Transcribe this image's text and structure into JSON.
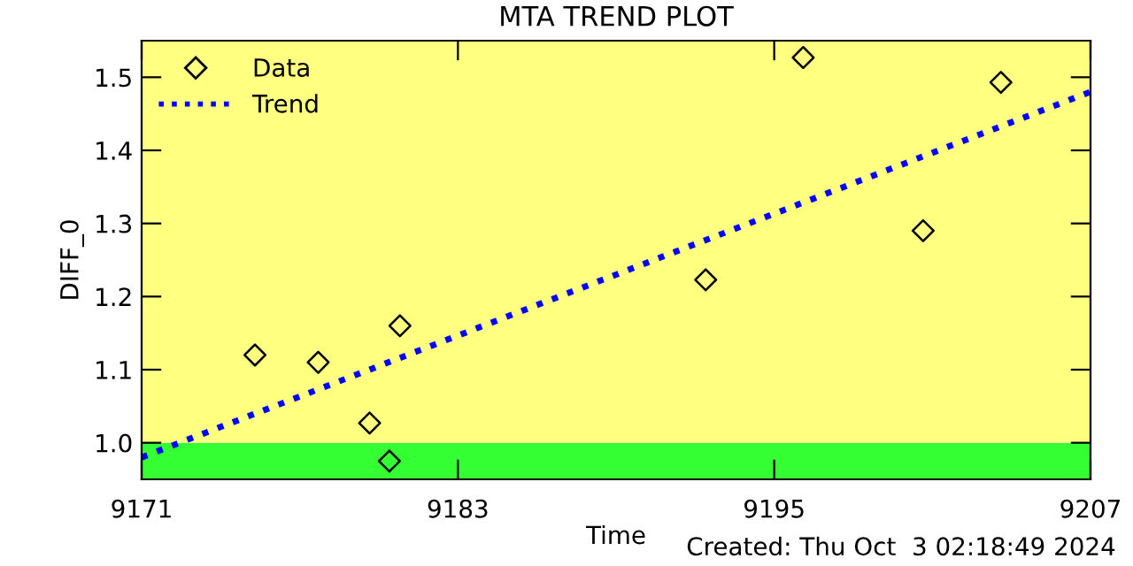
{
  "chart_data": {
    "type": "scatter",
    "title": "MTA TREND PLOT",
    "xlabel": "Time",
    "ylabel": "DIFF_0",
    "series": [
      {
        "name": "Data",
        "color": "#000000",
        "marker": "diamond",
        "x": [
          9175.3,
          9177.7,
          9179.65,
          9180.4,
          9180.8,
          9192.4,
          9196.1,
          9200.65,
          9203.6
        ],
        "values": [
          1.12,
          1.11,
          1.027,
          0.975,
          1.16,
          1.223,
          1.527,
          1.29,
          1.493
        ]
      },
      {
        "name": "Trend",
        "type": "line",
        "color": "#0000ff",
        "line_style": "dotted",
        "marker": "none",
        "x": [
          9171,
          9207
        ],
        "values": [
          0.98,
          1.48
        ]
      }
    ],
    "xlim": [
      9171,
      9207
    ],
    "xticks": [
      9171,
      9183,
      9195,
      9207
    ],
    "ylim": [
      0.95,
      1.55
    ],
    "yticks": [
      {
        "value": 1.0,
        "label": "1.0"
      },
      1.1,
      1.2,
      1.3,
      1.4,
      1.5
    ],
    "bands": [
      {
        "axis": "y",
        "from": 0.95,
        "to": 1.0,
        "color": "#33ff33"
      },
      {
        "axis": "y",
        "from": 1.0,
        "to": 1.55,
        "color": "#ffff80"
      }
    ],
    "legend": "top left",
    "grid": false,
    "annotations": [
      "Created: Thu Oct  3 02:18:49 2024"
    ]
  }
}
